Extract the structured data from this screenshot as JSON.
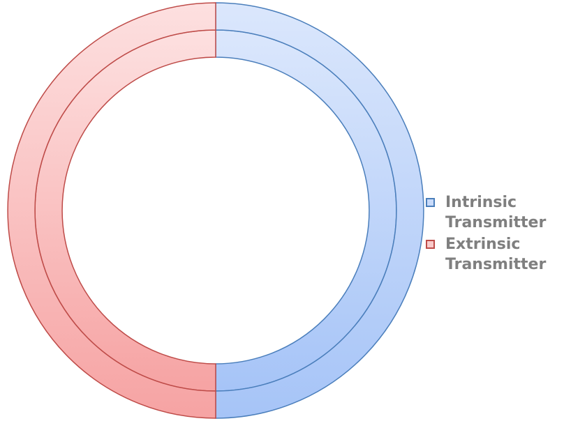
{
  "chart_data": {
    "type": "pie",
    "subtype": "doughnut",
    "rings": 2,
    "categories": [
      "Intrinsic Transmitter",
      "Extrinsic Transmitter"
    ],
    "series": [
      {
        "values": [
          50,
          50
        ]
      },
      {
        "values": [
          50,
          50
        ]
      }
    ],
    "colors": {
      "Intrinsic Transmitter": {
        "fill_top": "#dbe7fc",
        "fill_bottom": "#a6c4f7",
        "stroke": "#4a7ebb"
      },
      "Extrinsic Transmitter": {
        "fill_top": "#fde0e0",
        "fill_bottom": "#f6a3a3",
        "stroke": "#be4b48"
      }
    },
    "legend_position": "right",
    "legend": [
      {
        "line1": "Intrinsic",
        "line2": "Transmitter",
        "color": "#4a7ebb",
        "fill": "#c9dbfa"
      },
      {
        "line1": "Extrinsic",
        "line2": "Transmitter",
        "color": "#be4b48",
        "fill": "#f9caca"
      }
    ]
  }
}
